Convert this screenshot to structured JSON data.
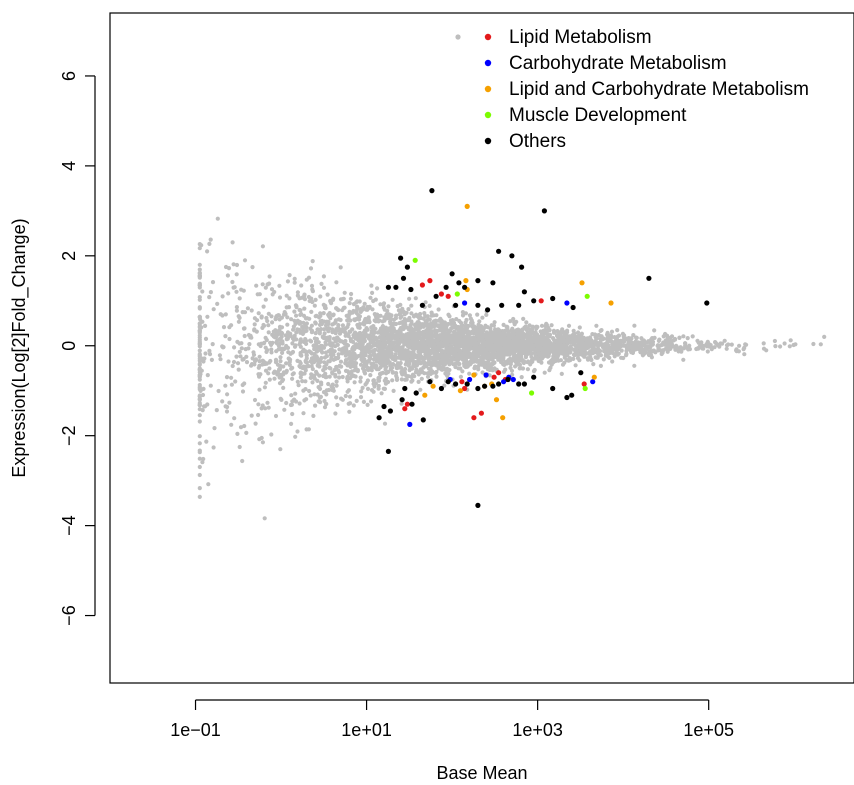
{
  "chart_data": {
    "type": "scatter",
    "title": "",
    "xlabel": "Base Mean",
    "ylabel": "Expression(Log[2]Fold_Change)",
    "x_scale": "log10",
    "xlim": [
      0.01,
      5000000
    ],
    "ylim": [
      -7.5,
      7.4
    ],
    "x_ticks": [
      {
        "value": 0.1,
        "label": "1e−01"
      },
      {
        "value": 10,
        "label": "1e+01"
      },
      {
        "value": 1000,
        "label": "1e+03"
      },
      {
        "value": 100000,
        "label": "1e+05"
      }
    ],
    "y_ticks": [
      {
        "value": -6,
        "label": "−6"
      },
      {
        "value": -4,
        "label": "−4"
      },
      {
        "value": -2,
        "label": "−2"
      },
      {
        "value": 0,
        "label": "0"
      },
      {
        "value": 2,
        "label": "2"
      },
      {
        "value": 4,
        "label": "4"
      },
      {
        "value": 6,
        "label": "6"
      }
    ],
    "grid": false,
    "legend": {
      "position": "top-right"
    },
    "background_series": {
      "label": "",
      "color": "#bebebe"
    },
    "series": [
      {
        "name": "Lipid Metabolism",
        "color": "#e31a1c",
        "points": [
          [
            55,
            1.45
          ],
          [
            75,
            1.15
          ],
          [
            90,
            1.1
          ],
          [
            45,
            1.35
          ],
          [
            28,
            -1.4
          ],
          [
            130,
            -0.8
          ],
          [
            180,
            -1.6
          ],
          [
            220,
            -1.5
          ],
          [
            310,
            -0.7
          ],
          [
            350,
            -0.6
          ],
          [
            140,
            -0.95
          ],
          [
            420,
            -0.75
          ],
          [
            1100,
            1.0
          ],
          [
            3500,
            -0.85
          ],
          [
            30,
            -1.3
          ]
        ]
      },
      {
        "name": "Carbohydrate Metabolism",
        "color": "#0000ff",
        "points": [
          [
            140,
            0.95
          ],
          [
            2200,
            0.95
          ],
          [
            32,
            -1.75
          ],
          [
            160,
            -0.75
          ],
          [
            250,
            -0.65
          ],
          [
            400,
            -0.8
          ],
          [
            460,
            -0.7
          ],
          [
            520,
            -0.75
          ],
          [
            4400,
            -0.8
          ],
          [
            95,
            -0.75
          ]
        ]
      },
      {
        "name": "Lipid and Carbohydrate Metabolism",
        "color": "#f5a000",
        "points": [
          [
            150,
            3.1
          ],
          [
            145,
            1.45
          ],
          [
            150,
            1.25
          ],
          [
            3300,
            1.4
          ],
          [
            7200,
            0.95
          ],
          [
            48,
            -1.1
          ],
          [
            60,
            -0.9
          ],
          [
            125,
            -1.0
          ],
          [
            180,
            -0.65
          ],
          [
            240,
            -0.9
          ],
          [
            290,
            -0.85
          ],
          [
            330,
            -1.2
          ],
          [
            390,
            -1.6
          ],
          [
            4600,
            -0.7
          ]
        ]
      },
      {
        "name": "Muscle Development",
        "color": "#7cfc00",
        "points": [
          [
            37,
            1.9
          ],
          [
            115,
            1.15
          ],
          [
            3800,
            1.1
          ],
          [
            850,
            -1.05
          ],
          [
            3600,
            -0.95
          ]
        ]
      },
      {
        "name": "Others",
        "color": "#000000",
        "points": [
          [
            58,
            3.45
          ],
          [
            1200,
            3.0
          ],
          [
            25,
            1.95
          ],
          [
            30,
            1.75
          ],
          [
            27,
            1.5
          ],
          [
            22,
            1.3
          ],
          [
            18,
            1.3
          ],
          [
            33,
            1.25
          ],
          [
            65,
            1.1
          ],
          [
            85,
            1.3
          ],
          [
            100,
            1.6
          ],
          [
            120,
            1.4
          ],
          [
            140,
            1.3
          ],
          [
            200,
            1.45
          ],
          [
            350,
            2.1
          ],
          [
            500,
            2.0
          ],
          [
            650,
            1.75
          ],
          [
            300,
            1.4
          ],
          [
            700,
            1.2
          ],
          [
            900,
            1.0
          ],
          [
            1500,
            1.05
          ],
          [
            2600,
            0.85
          ],
          [
            20000,
            1.5
          ],
          [
            95000,
            0.95
          ],
          [
            45,
            0.9
          ],
          [
            110,
            0.9
          ],
          [
            200,
            0.9
          ],
          [
            260,
            0.8
          ],
          [
            380,
            0.9
          ],
          [
            600,
            0.9
          ],
          [
            55,
            -0.8
          ],
          [
            75,
            -0.95
          ],
          [
            90,
            -0.8
          ],
          [
            110,
            -0.85
          ],
          [
            150,
            -0.85
          ],
          [
            200,
            -0.95
          ],
          [
            240,
            -0.9
          ],
          [
            300,
            -0.9
          ],
          [
            350,
            -0.85
          ],
          [
            450,
            -0.75
          ],
          [
            600,
            -0.85
          ],
          [
            700,
            -0.85
          ],
          [
            900,
            -0.7
          ],
          [
            1500,
            -0.95
          ],
          [
            2500,
            -1.1
          ],
          [
            3200,
            -0.6
          ],
          [
            14,
            -1.6
          ],
          [
            19,
            -1.45
          ],
          [
            26,
            -1.2
          ],
          [
            38,
            -1.05
          ],
          [
            34,
            -1.3
          ],
          [
            46,
            -1.65
          ],
          [
            16,
            -1.35
          ],
          [
            18,
            -2.35
          ],
          [
            200,
            -3.55
          ],
          [
            28,
            -0.95
          ],
          [
            2200,
            -1.15
          ]
        ]
      }
    ],
    "background_description_points_count": "thousands"
  },
  "legend_labels": {
    "bg": "",
    "s0": "Lipid Metabolism",
    "s1": "Carbohydrate Metabolism",
    "s2": "Lipid and Carbohydrate Metabolism",
    "s3": "Muscle Development",
    "s4": "Others"
  }
}
